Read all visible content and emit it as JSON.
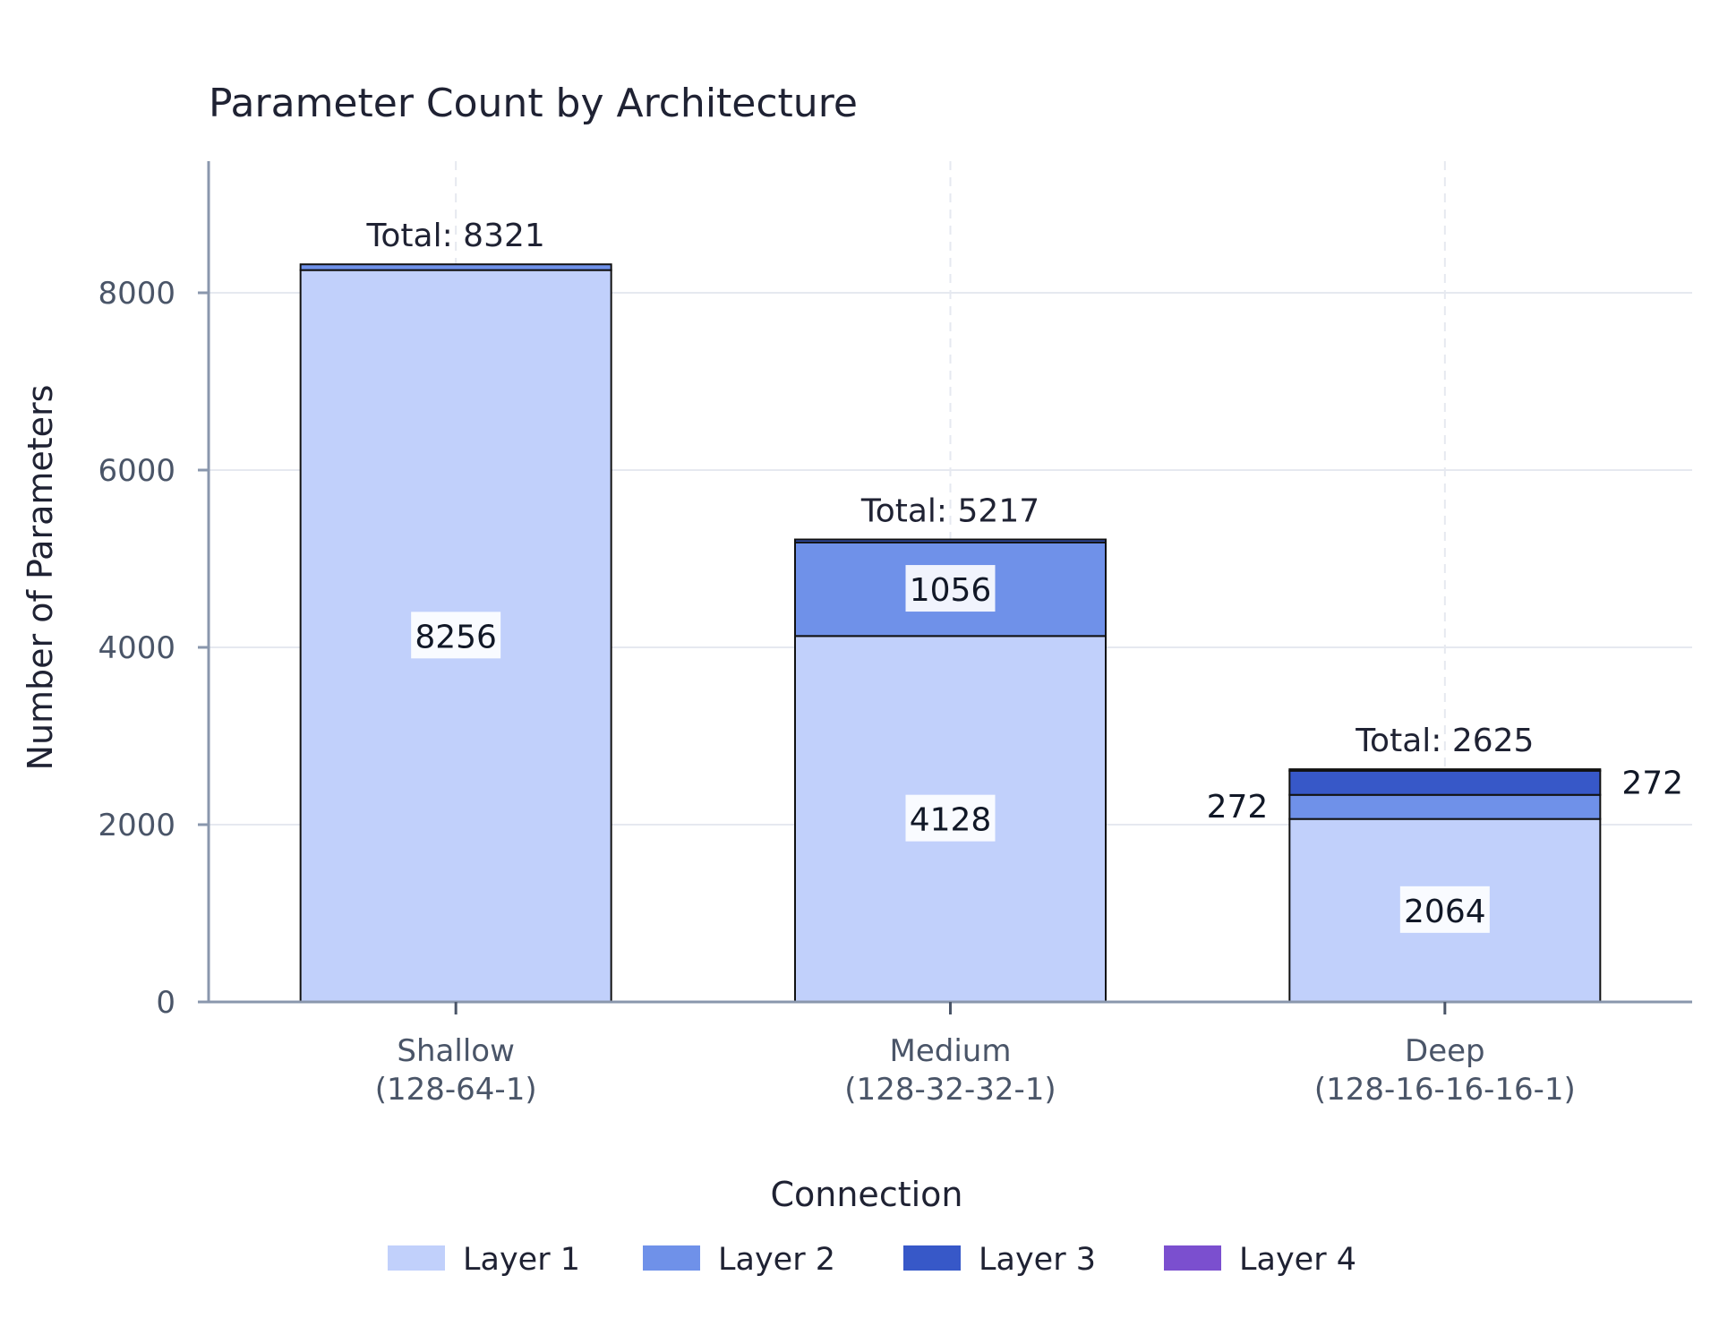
{
  "chart_data": {
    "type": "bar",
    "stacked": true,
    "title": "Parameter Count by Architecture",
    "xlabel": "",
    "ylabel": "Number of Parameters",
    "ylim": [
      0,
      9500
    ],
    "yticks": [
      0,
      2000,
      4000,
      6000,
      8000
    ],
    "grid": true,
    "categories": [
      [
        "Shallow",
        "(128-64-1)"
      ],
      [
        "Medium",
        "(128-32-32-1)"
      ],
      [
        "Deep",
        "(128-16-16-16-1)"
      ]
    ],
    "series": [
      {
        "name": "Layer 1",
        "color": "#c1d0fb",
        "values": [
          8256,
          4128,
          2064
        ]
      },
      {
        "name": "Layer 2",
        "color": "#6f91e9",
        "values": [
          65,
          1056,
          272
        ]
      },
      {
        "name": "Layer 3",
        "color": "#3758c8",
        "values": [
          0,
          33,
          272
        ]
      },
      {
        "name": "Layer 4",
        "color": "#7b4fcf",
        "values": [
          0,
          0,
          17
        ]
      }
    ],
    "totals": [
      "Total: 8321",
      "Total: 5217",
      "Total: 2625"
    ],
    "segment_labels": [
      {
        "category": 0,
        "series": 0,
        "text": "8256",
        "position": "inside"
      },
      {
        "category": 1,
        "series": 0,
        "text": "4128",
        "position": "inside"
      },
      {
        "category": 1,
        "series": 1,
        "text": "1056",
        "position": "inside"
      },
      {
        "category": 2,
        "series": 0,
        "text": "2064",
        "position": "inside"
      },
      {
        "category": 2,
        "series": 1,
        "text": "272",
        "position": "left"
      },
      {
        "category": 2,
        "series": 2,
        "text": "272",
        "position": "right"
      }
    ],
    "legend": {
      "title": "Connection",
      "placement": "bottom"
    }
  }
}
